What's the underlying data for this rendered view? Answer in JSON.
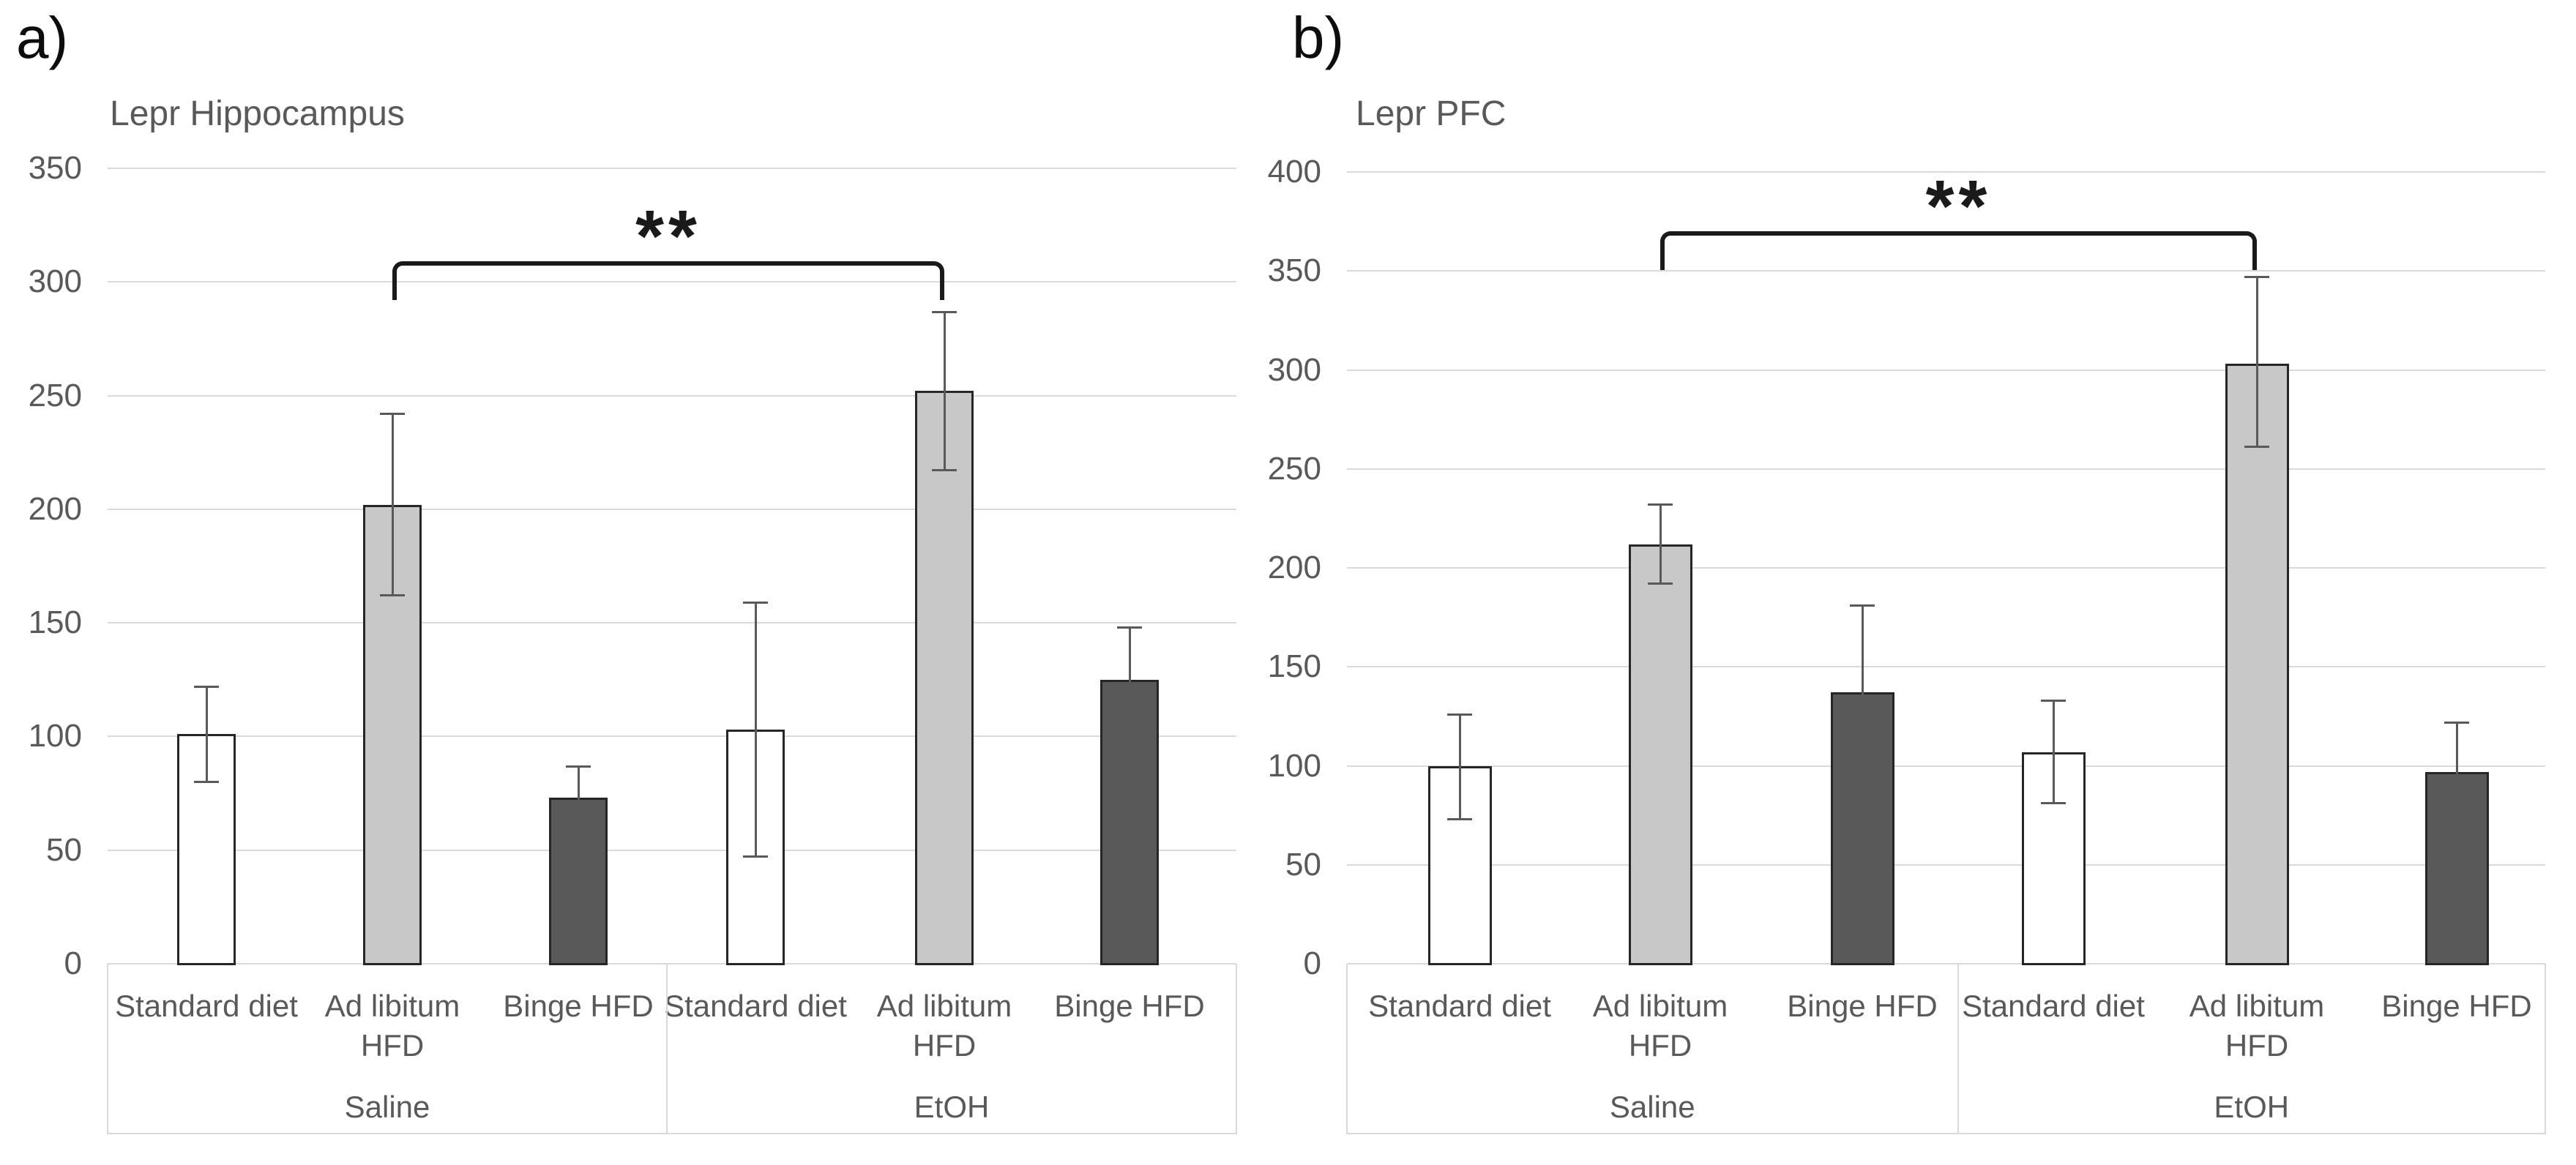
{
  "figure_type": "two-panel grouped bar chart with error bars",
  "ui": {
    "background": "#ffffff",
    "gridline_color": "#d9d9d9",
    "axis_text_color": "#595959",
    "title_text_color": "#595959",
    "error_bar_color": "#595959",
    "bracket_color": "#1a1a1a",
    "panel_label_color": "#0d0d0d",
    "bar_palette": {
      "white": {
        "fill": "#ffffff",
        "border": "#262626"
      },
      "light": {
        "fill": "#c8c8c8",
        "border": "#262626"
      },
      "dark": {
        "fill": "#595959",
        "border": "#262626"
      }
    }
  },
  "chart_data": [
    {
      "type": "bar",
      "panel_label": "a)",
      "title": "Lepr Hippocampus",
      "xlabel": "",
      "ylabel": "",
      "ylim": [
        0,
        350
      ],
      "ytick_step": 50,
      "ytick_labels": [
        "350",
        "300",
        "250",
        "200",
        "150",
        "100",
        "50",
        "0"
      ],
      "grid": true,
      "legend": false,
      "group_labels": [
        "Saline",
        "EtOH"
      ],
      "categories": [
        "Standard diet",
        "Ad libitum HFD",
        "Binge HFD",
        "Standard diet",
        "Ad libitum HFD",
        "Binge HFD"
      ],
      "display_lines": [
        [
          "Standard diet"
        ],
        [
          "Ad libitum",
          "HFD"
        ],
        [
          "Binge HFD"
        ],
        [
          "Standard diet"
        ],
        [
          "Ad libitum",
          "HFD"
        ],
        [
          "Binge HFD"
        ]
      ],
      "values": [
        101,
        202,
        73,
        103,
        252,
        125
      ],
      "error_low": [
        80,
        162,
        59,
        47,
        217,
        102
      ],
      "error_high": [
        122,
        242,
        87,
        159,
        287,
        148
      ],
      "bar_styles": [
        "white",
        "light",
        "dark",
        "white",
        "light",
        "dark"
      ],
      "significance": {
        "label": "**",
        "from": 1,
        "to": 4,
        "height_value": 309
      }
    },
    {
      "type": "bar",
      "panel_label": "b)",
      "title": "Lepr PFC",
      "xlabel": "",
      "ylabel": "",
      "ylim": [
        0,
        400
      ],
      "ytick_step": 50,
      "ytick_labels": [
        "400",
        "350",
        "300",
        "250",
        "200",
        "150",
        "100",
        "50",
        "0"
      ],
      "grid": true,
      "legend": false,
      "group_labels": [
        "Saline",
        "EtOH"
      ],
      "categories": [
        "Standard diet",
        "Ad libitum HFD",
        "Binge HFD",
        "Standard diet",
        "Ad libitum HFD",
        "Binge HFD"
      ],
      "display_lines": [
        [
          "Standard diet"
        ],
        [
          "Ad libitum",
          "HFD"
        ],
        [
          "Binge HFD"
        ],
        [
          "Standard diet"
        ],
        [
          "Ad libitum",
          "HFD"
        ],
        [
          "Binge HFD"
        ]
      ],
      "values": [
        100,
        212,
        137,
        107,
        303,
        97
      ],
      "error_low": [
        73,
        192,
        93,
        81,
        261,
        72
      ],
      "error_high": [
        126,
        232,
        181,
        133,
        347,
        122
      ],
      "bar_styles": [
        "white",
        "light",
        "dark",
        "white",
        "light",
        "dark"
      ],
      "significance": {
        "label": "**",
        "from": 1,
        "to": 4,
        "height_value": 370
      }
    }
  ]
}
